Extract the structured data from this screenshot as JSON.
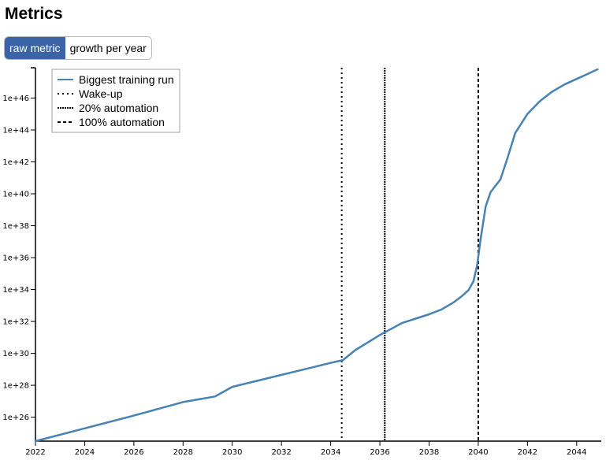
{
  "page": {
    "title": "Metrics"
  },
  "toggle": {
    "options": [
      "raw metric",
      "growth per year"
    ],
    "active": 0
  },
  "chart_data": {
    "type": "line",
    "x_scale": "linear",
    "y_scale": "log",
    "xlim": [
      2022,
      2045
    ],
    "ylim_log10": [
      24.5,
      47.9
    ],
    "x_ticks": [
      2022,
      2024,
      2026,
      2028,
      2030,
      2032,
      2034,
      2036,
      2038,
      2040,
      2042,
      2044
    ],
    "x_tick_labels": [
      "2022",
      "2024",
      "2026",
      "2028",
      "2030",
      "2032",
      "2034",
      "2036",
      "2038",
      "2040",
      "2042",
      "2044"
    ],
    "y_ticks_log10": [
      26,
      28,
      30,
      32,
      34,
      36,
      38,
      40,
      42,
      44,
      46
    ],
    "y_tick_labels": [
      "1e+26",
      "1e+28",
      "1e+30",
      "1e+32",
      "1e+34",
      "1e+36",
      "1e+38",
      "1e+40",
      "1e+42",
      "1e+44",
      "1e+46"
    ],
    "series": [
      {
        "name": "Biggest training run",
        "color": "#4682b4",
        "x": [
          2022.0,
          2024.0,
          2026.0,
          2028.0,
          2029.3,
          2030.0,
          2032.0,
          2034.0,
          2034.5,
          2035.0,
          2036.0,
          2036.9,
          2037.5,
          2038.0,
          2038.5,
          2039.0,
          2039.3,
          2039.6,
          2039.8,
          2039.95,
          2040.1,
          2040.3,
          2040.5,
          2040.9,
          2041.2,
          2041.5,
          2042.0,
          2042.5,
          2043.0,
          2043.5,
          2044.0,
          2044.5,
          2044.85
        ],
        "y_log10": [
          24.5,
          25.3,
          26.1,
          26.95,
          27.3,
          27.9,
          28.65,
          29.4,
          29.58,
          30.2,
          31.15,
          31.9,
          32.2,
          32.45,
          32.75,
          33.2,
          33.55,
          33.95,
          34.5,
          35.5,
          37.2,
          39.2,
          40.1,
          40.9,
          42.3,
          43.8,
          45.0,
          45.8,
          46.4,
          46.85,
          47.2,
          47.55,
          47.8
        ]
      }
    ],
    "vlines": [
      {
        "name": "Wake-up",
        "x": 2034.45,
        "style": "dotted"
      },
      {
        "name": "20% automation",
        "x": 2036.2,
        "style": "dense-dash"
      },
      {
        "name": "100% automation",
        "x": 2040.0,
        "style": "dashed"
      }
    ],
    "legend_placement": "top-left",
    "grid": false
  }
}
